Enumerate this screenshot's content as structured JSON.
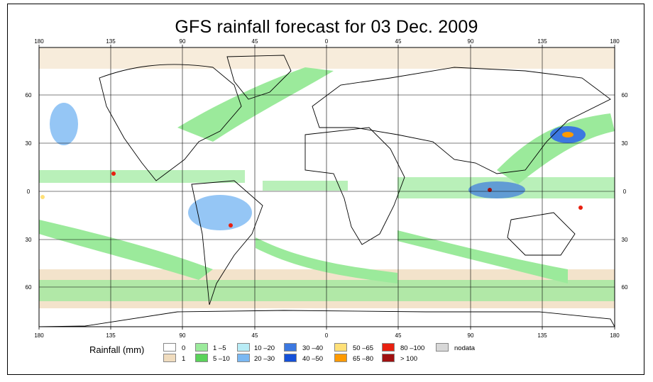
{
  "title": "GFS rainfall forecast for 03 Dec. 2009",
  "axes": {
    "lon_ticks": [
      "180",
      "135",
      "90",
      "45",
      "0",
      "45",
      "90",
      "135",
      "180"
    ],
    "lat_ticks": [
      "60",
      "30",
      "0",
      "30",
      "60"
    ]
  },
  "legend": {
    "title": "Rainfall (mm)",
    "items": [
      {
        "label": "0",
        "color": "#ffffff"
      },
      {
        "label": "1",
        "color": "#f0dcbe"
      },
      {
        "label": "1 –5",
        "color": "#9bea9b"
      },
      {
        "label": "5 –10",
        "color": "#5ad25a"
      },
      {
        "label": "10 –20",
        "color": "#b8ecf6"
      },
      {
        "label": "20 –30",
        "color": "#7ab8f2"
      },
      {
        "label": "30 –40",
        "color": "#3c78e0"
      },
      {
        "label": "40 –50",
        "color": "#1450d8"
      },
      {
        "label": "50 –65",
        "color": "#ffe078"
      },
      {
        "label": "65 –80",
        "color": "#ff9a00"
      },
      {
        "label": "80 –100",
        "color": "#e82010"
      },
      {
        "label": "> 100",
        "color": "#a01010"
      },
      {
        "label": "nodata",
        "color": "#d8d8d8"
      }
    ]
  }
}
